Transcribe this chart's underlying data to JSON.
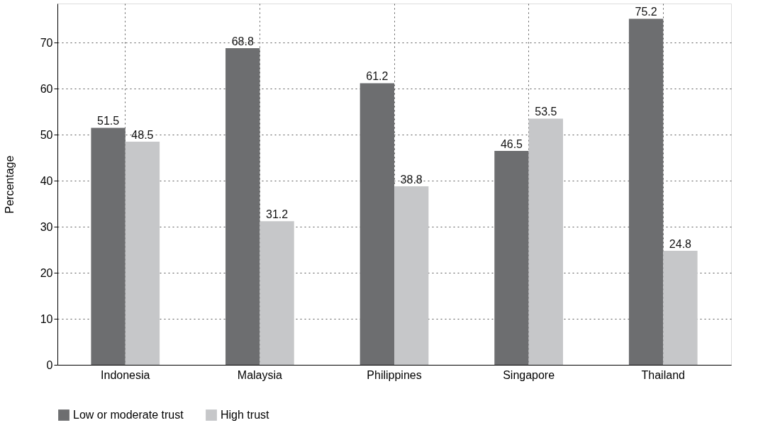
{
  "chart_data": {
    "type": "bar",
    "ylabel": "Percentage",
    "categories": [
      "Indonesia",
      "Malaysia",
      "Philippines",
      "Singapore",
      "Thailand"
    ],
    "series": [
      {
        "name": "Low or moderate trust",
        "color": "#6d6e70",
        "values": [
          51.5,
          68.8,
          61.2,
          46.5,
          75.2
        ]
      },
      {
        "name": "High trust",
        "color": "#c6c7c9",
        "values": [
          48.5,
          31.2,
          38.8,
          53.5,
          24.8
        ]
      }
    ],
    "ylim": [
      0,
      78.5
    ],
    "yticks": [
      0,
      10,
      20,
      30,
      40,
      50,
      60,
      70
    ],
    "grid": true,
    "legend": "bottom",
    "data_labels": true
  }
}
